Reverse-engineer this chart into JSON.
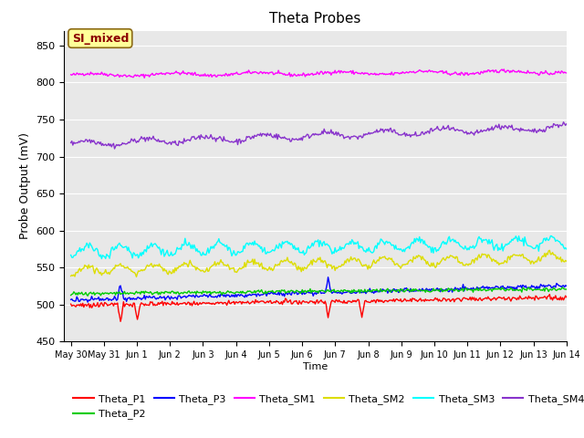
{
  "title": "Theta Probes",
  "ylabel": "Probe Output (mV)",
  "xlabel": "Time",
  "annotation": "SI_mixed",
  "annotation_color": "#8B0000",
  "annotation_bg": "#FFFF99",
  "background_color": "#E8E8E8",
  "ylim": [
    450,
    870
  ],
  "yticks": [
    450,
    500,
    550,
    600,
    650,
    700,
    750,
    800,
    850
  ],
  "xtick_labels": [
    "May 30",
    "May 31",
    "Jun 1",
    "Jun 2",
    "Jun 3",
    "Jun 4",
    "Jun 5",
    "Jun 6",
    "Jun 7",
    "Jun 8",
    "Jun 9",
    "Jun 10",
    "Jun 11",
    "Jun 12",
    "Jun 13",
    "Jun 14"
  ],
  "xtick_positions": [
    0,
    1,
    2,
    3,
    4,
    5,
    6,
    7,
    8,
    9,
    10,
    11,
    12,
    13,
    14,
    15
  ],
  "series_colors": {
    "Theta_P1": "#FF0000",
    "Theta_P2": "#00CC00",
    "Theta_P3": "#0000FF",
    "Theta_SM1": "#FF00FF",
    "Theta_SM2": "#DDDD00",
    "Theta_SM3": "#00FFFF",
    "Theta_SM4": "#8833CC"
  },
  "legend_row1": [
    "Theta_P1",
    "Theta_P2",
    "Theta_P3",
    "Theta_SM1",
    "Theta_SM2",
    "Theta_SM3"
  ],
  "legend_row2": [
    "Theta_SM4"
  ]
}
